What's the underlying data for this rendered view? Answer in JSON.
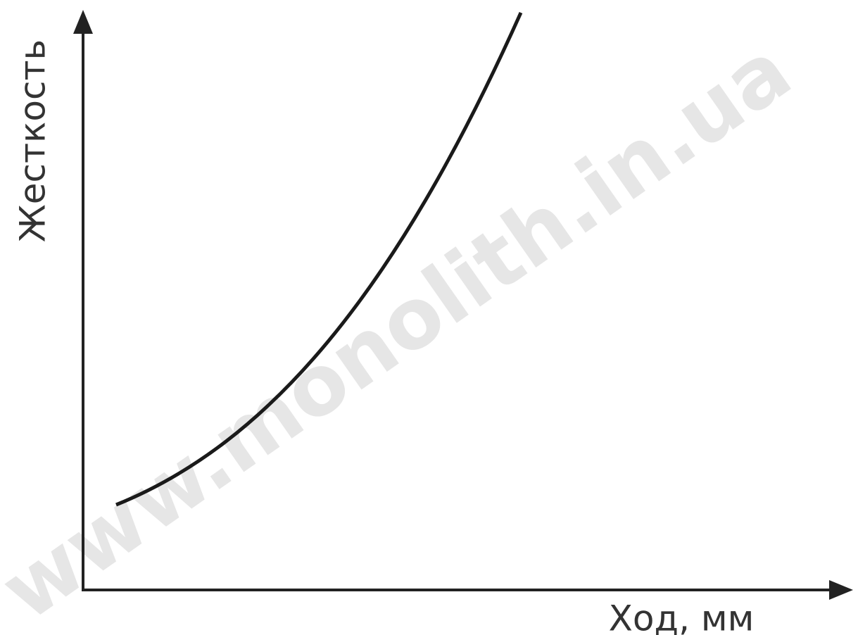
{
  "chart_data": {
    "type": "line",
    "xlabel": "Ход, мм",
    "ylabel": "Жесткость",
    "watermark": "www.monolith.in.ua"
  }
}
